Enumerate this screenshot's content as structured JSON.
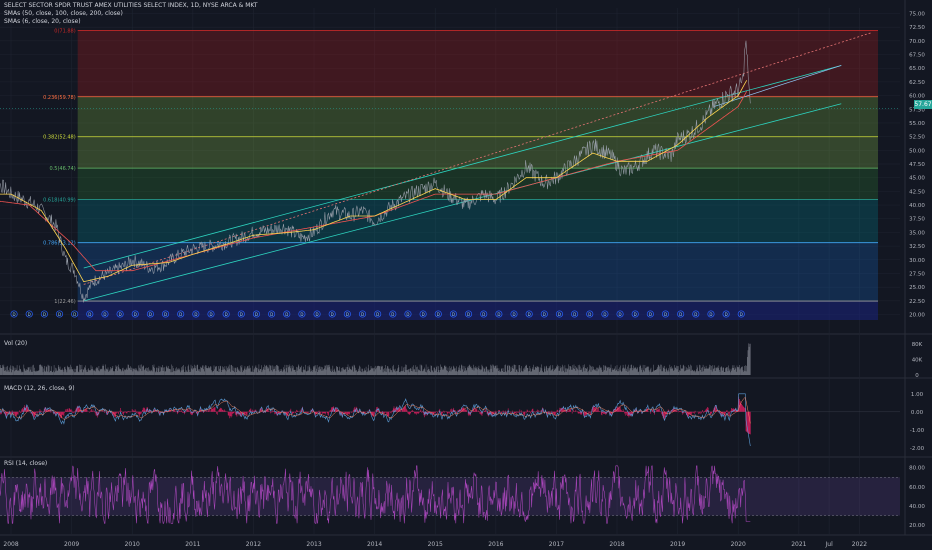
{
  "header": {
    "symbol": "SELECT SECTOR SPDR TRUST AMEX UTILITIES SELECT INDEX, 1D, NYSE ARCA & MKT",
    "sma_a": "SMAs (50, close, 100, close, 200, close)",
    "sma_b": "SMAs (6, close, 20, close)"
  },
  "last_price": "57.67",
  "colors": {
    "bg": "#131722",
    "grid": "#1f2430",
    "price": "#9aa0ab",
    "sma_fast": "#ffd54f",
    "sma_slow": "#ef5350",
    "channel": "#2dd4bf",
    "volume": "#787b86",
    "macd": "#5b9bd5",
    "signal": "#e91e63",
    "rsi": "#ab47bc"
  },
  "chart_data": {
    "type": "line",
    "x_ticks": [
      "2008",
      "2009",
      "2010",
      "2011",
      "2012",
      "2013",
      "2014",
      "2015",
      "2016",
      "2017",
      "2018",
      "2019",
      "2020",
      "2021",
      "Jul",
      "2022"
    ],
    "price_axis": {
      "ticks": [
        "75.00",
        "72.50",
        "70.00",
        "67.50",
        "65.00",
        "62.50",
        "60.00",
        "57.50",
        "55.00",
        "52.50",
        "50.00",
        "47.50",
        "45.00",
        "42.50",
        "40.00",
        "37.50",
        "35.00",
        "32.50",
        "30.00",
        "27.50",
        "25.00",
        "22.50",
        "20.00"
      ],
      "ylim": [
        19,
        76
      ]
    },
    "price_series": {
      "x": [
        2007.6,
        2007.8,
        2008.0,
        2008.2,
        2008.4,
        2008.6,
        2008.75,
        2008.9,
        2009.05,
        2009.2,
        2009.35,
        2009.5,
        2009.7,
        2009.9,
        2010.0,
        2010.3,
        2010.5,
        2010.8,
        2011.0,
        2011.3,
        2011.5,
        2011.8,
        2012.0,
        2012.3,
        2012.5,
        2012.8,
        2013.0,
        2013.3,
        2013.6,
        2013.8,
        2014.0,
        2014.3,
        2014.6,
        2014.8,
        2015.0,
        2015.2,
        2015.5,
        2015.8,
        2016.0,
        2016.2,
        2016.5,
        2016.8,
        2017.0,
        2017.3,
        2017.6,
        2017.9,
        2018.1,
        2018.3,
        2018.6,
        2018.9,
        2019.0,
        2019.2,
        2019.4,
        2019.6,
        2019.8,
        2020.0,
        2020.08,
        2020.12,
        2020.16,
        2020.2
      ],
      "y": [
        43,
        44,
        42,
        41,
        40,
        38,
        36,
        30,
        28,
        23,
        26,
        27,
        28,
        29,
        30,
        28.5,
        29,
        31,
        32,
        32.5,
        33,
        34,
        35,
        35.5,
        36,
        34,
        35,
        39,
        38,
        39,
        37,
        40,
        42,
        43,
        44,
        42,
        40,
        42,
        41,
        43,
        47,
        44,
        45,
        48,
        51,
        49,
        46,
        47,
        50,
        49,
        52,
        53,
        55,
        58,
        60,
        61,
        63,
        70,
        65,
        57.7
      ]
    },
    "sma_fast": {
      "x": [
        2007.6,
        2008.0,
        2008.5,
        2008.9,
        2009.2,
        2009.6,
        2010.0,
        2010.6,
        2011.0,
        2011.6,
        2012.0,
        2012.6,
        2013.0,
        2013.6,
        2014.0,
        2014.6,
        2015.0,
        2015.5,
        2016.0,
        2016.5,
        2017.0,
        2017.6,
        2018.0,
        2018.5,
        2019.0,
        2019.5,
        2020.0,
        2020.15
      ],
      "y": [
        42,
        42,
        39,
        32,
        26,
        27,
        29,
        29.5,
        31,
        33,
        34.5,
        35,
        35.5,
        38,
        38,
        41,
        43,
        41,
        41,
        45,
        45,
        49.5,
        48,
        48,
        51,
        56,
        60,
        63
      ]
    },
    "sma_slow": {
      "x": [
        2007.6,
        2008.3,
        2009.0,
        2009.4,
        2010.0,
        2011.0,
        2012.0,
        2013.0,
        2014.0,
        2015.0,
        2016.0,
        2017.0,
        2018.0,
        2019.0,
        2020.0,
        2020.15
      ],
      "y": [
        41,
        40,
        33,
        28,
        28,
        31,
        34,
        36,
        38,
        42,
        42,
        45,
        48,
        50,
        58,
        61
      ]
    },
    "fibonacci": [
      {
        "label": "0(71.88)",
        "value": 71.88
      },
      {
        "label": "0.236(59.78)",
        "value": 59.78
      },
      {
        "label": "0.382(52.48)",
        "value": 52.48
      },
      {
        "label": "0.5(46.74)",
        "value": 46.74
      },
      {
        "label": "0.618(40.99)",
        "value": 40.99
      },
      {
        "label": "0.786(33.12)",
        "value": 33.12
      },
      {
        "label": "1(22.46)",
        "value": 22.46
      }
    ],
    "dividend_marker": "D",
    "channel_lines": [
      {
        "x": [
          2009.2,
          2021.7
        ],
        "y": [
          28.5,
          65.5
        ]
      },
      {
        "x": [
          2009.2,
          2021.7
        ],
        "y": [
          22.5,
          58.5
        ]
      },
      {
        "x": [
          2009.2,
          2022.2
        ],
        "y": [
          25.5,
          71.5
        ]
      }
    ],
    "volume": {
      "label": "Vol (20)",
      "ticks": [
        "80K",
        "40K",
        "0"
      ],
      "ylim": [
        0,
        90
      ],
      "typical": 17,
      "spike_x": 2020.2,
      "spike_y": 85
    },
    "macd": {
      "label": "MACD (12, 26, close, 9)",
      "ticks": [
        "1.00",
        "0.00",
        "-1.00",
        "-2.00"
      ],
      "ylim": [
        -2.4,
        1.6
      ]
    },
    "rsi": {
      "label": "RSI (14, close)",
      "ticks": [
        "80.00",
        "60.00",
        "40.00",
        "20.00"
      ],
      "ylim": [
        15,
        88
      ],
      "bands": [
        70,
        30
      ]
    }
  }
}
